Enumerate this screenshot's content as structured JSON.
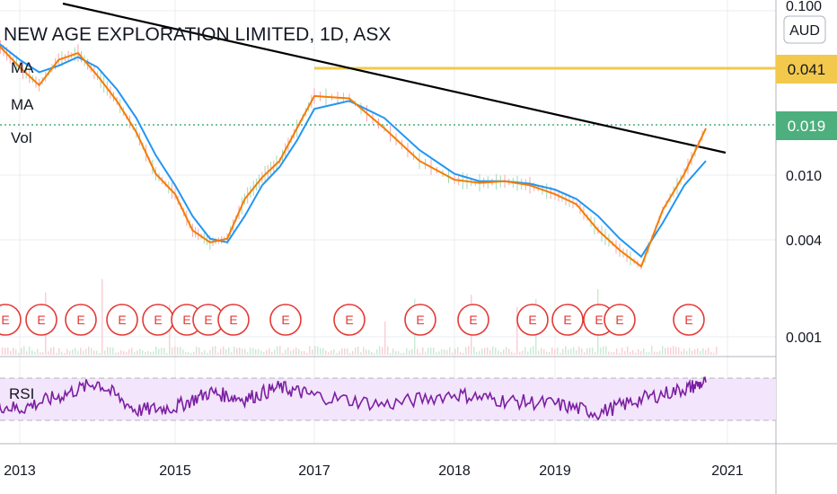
{
  "header": {
    "title": "NEW AGE EXPLORATION LIMITED, 1D, ASX",
    "indicators": [
      "MA",
      "MA",
      "Vol"
    ]
  },
  "currency_button": "AUD",
  "price_axis": {
    "ticks": [
      "0.100",
      "0.041",
      "0.019",
      "0.010",
      "0.004",
      "0.001"
    ],
    "scale": "log"
  },
  "time_axis": {
    "ticks": [
      "2013",
      "2015",
      "2017",
      "2018",
      "2019",
      "2021"
    ]
  },
  "labels": {
    "resistance": "0.041",
    "last_price": "0.019"
  },
  "colors": {
    "ma_fast": "#f57c00",
    "ma_slow": "#2196f3",
    "trendline": "#000000",
    "resistance": "#f2c94c",
    "last_price": "#4caf7d",
    "rsi": "#7b1fa2",
    "rsi_band": "#f3e5fb",
    "earnings": "#e53935",
    "grid": "#e9ecf0"
  },
  "earnings_marker": "E",
  "rsi_pane": {
    "label": "RSI",
    "upper": 70,
    "lower": 30
  },
  "chart_data": {
    "type": "line",
    "title": "NEW AGE EXPLORATION LIMITED, 1D, ASX",
    "y_scale": "log",
    "ylim": [
      0.001,
      0.1
    ],
    "grid": true,
    "series": [
      {
        "name": "MA",
        "x": [
          "2012-07",
          "2012-10",
          "2013-01",
          "2013-04",
          "2013-07",
          "2013-10",
          "2014-01",
          "2014-04",
          "2014-07",
          "2014-10",
          "2015-01",
          "2015-04",
          "2015-07",
          "2015-10",
          "2016-01",
          "2016-04",
          "2016-07",
          "2016-10",
          "2017-01",
          "2017-04",
          "2017-07",
          "2017-10",
          "2018-01",
          "2018-04",
          "2018-07",
          "2018-10",
          "2019-01",
          "2019-04",
          "2019-07",
          "2019-10",
          "2020-01",
          "2020-04",
          "2020-07",
          "2020-10"
        ],
        "values": [
          0.07,
          0.06,
          0.045,
          0.035,
          0.05,
          0.055,
          0.04,
          0.028,
          0.018,
          0.01,
          0.0075,
          0.0045,
          0.0038,
          0.004,
          0.007,
          0.0095,
          0.012,
          0.019,
          0.03,
          0.029,
          0.019,
          0.012,
          0.0092,
          0.0088,
          0.009,
          0.0085,
          0.0075,
          0.0065,
          0.0045,
          0.0034,
          0.0027,
          0.006,
          0.01,
          0.019
        ]
      },
      {
        "name": "MA",
        "x": [
          "2012-07",
          "2012-10",
          "2013-01",
          "2013-04",
          "2013-07",
          "2013-10",
          "2014-01",
          "2014-04",
          "2014-07",
          "2014-10",
          "2015-01",
          "2015-04",
          "2015-07",
          "2015-10",
          "2016-01",
          "2016-04",
          "2016-07",
          "2016-10",
          "2017-01",
          "2017-04",
          "2017-07",
          "2017-10",
          "2018-01",
          "2018-04",
          "2018-07",
          "2018-10",
          "2019-01",
          "2019-04",
          "2019-07",
          "2019-10",
          "2020-01",
          "2020-04",
          "2020-07",
          "2020-10"
        ],
        "values": [
          0.068,
          0.062,
          0.05,
          0.042,
          0.046,
          0.052,
          0.045,
          0.033,
          0.022,
          0.013,
          0.0085,
          0.0055,
          0.004,
          0.0038,
          0.0055,
          0.0085,
          0.011,
          0.016,
          0.025,
          0.028,
          0.022,
          0.014,
          0.01,
          0.009,
          0.009,
          0.0087,
          0.008,
          0.007,
          0.0055,
          0.004,
          0.0031,
          0.005,
          0.0085,
          0.012
        ]
      }
    ],
    "rsi": {
      "x": [
        "2012-07",
        "2013-01",
        "2013-07",
        "2014-01",
        "2014-07",
        "2015-01",
        "2015-07",
        "2016-01",
        "2016-07",
        "2017-01",
        "2017-07",
        "2018-01",
        "2018-07",
        "2019-01",
        "2019-07",
        "2020-01",
        "2020-07",
        "2020-10"
      ],
      "values": [
        48,
        40,
        55,
        72,
        38,
        42,
        60,
        52,
        66,
        56,
        45,
        58,
        50,
        46,
        35,
        52,
        64,
        72
      ]
    }
  }
}
